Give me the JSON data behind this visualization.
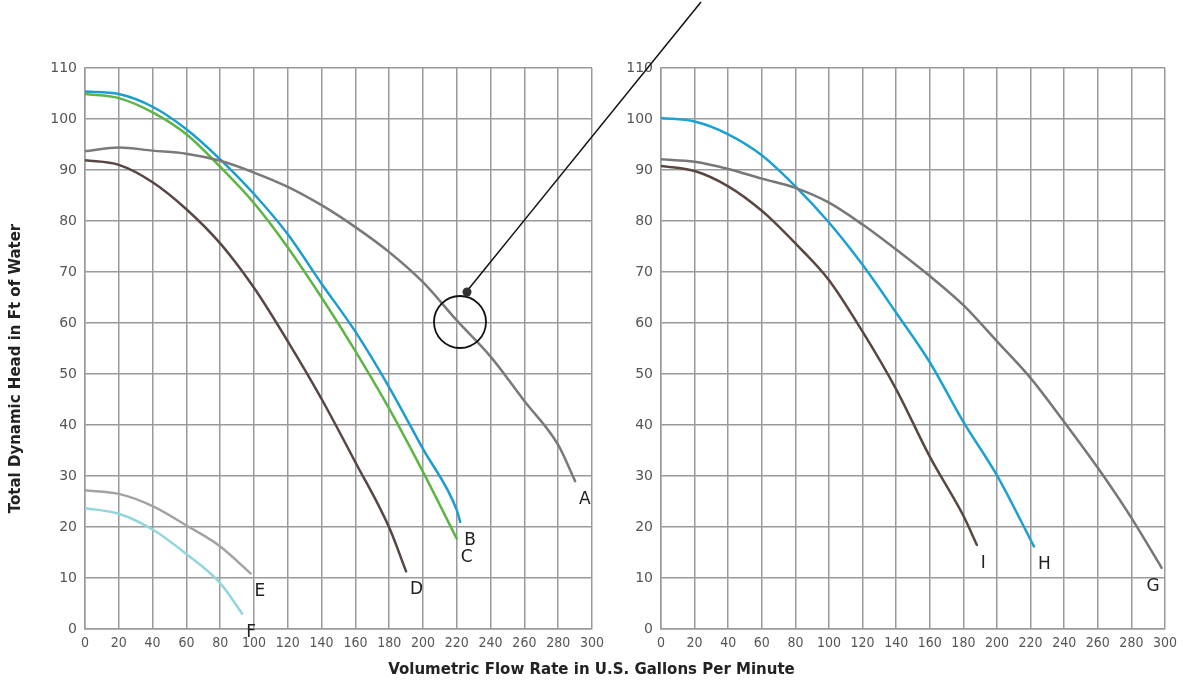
{
  "chart_data": [
    {
      "type": "line",
      "ylabel": "Total Dynamic Head in Ft of Water",
      "xlabel": "Volumetric Flow Rate in U.S. Gallons Per Minute",
      "xlim": [
        0,
        300
      ],
      "xticks": [
        0,
        20,
        40,
        60,
        80,
        100,
        120,
        140,
        160,
        180,
        200,
        220,
        240,
        260,
        280,
        300
      ],
      "ylim": [
        0,
        110
      ],
      "yticks": [
        0,
        10,
        20,
        30,
        40,
        50,
        60,
        70,
        80,
        90,
        100,
        110
      ],
      "grid": true,
      "legend": false,
      "marker": "none",
      "line_style": "solid",
      "series": [
        {
          "name": "A",
          "color": "#7a7a7a",
          "x": [
            0,
            20,
            40,
            60,
            80,
            100,
            120,
            140,
            160,
            180,
            200,
            220,
            240,
            260,
            280,
            290
          ],
          "values": [
            93.7,
            94.4,
            93.8,
            93.2,
            91.8,
            89.5,
            86.7,
            83.1,
            78.8,
            73.9,
            68,
            60.5,
            53.4,
            44.7,
            36.1,
            29
          ]
        },
        {
          "name": "B",
          "color": "#1b9dd0",
          "x": [
            0,
            20,
            40,
            60,
            80,
            100,
            120,
            140,
            160,
            180,
            200,
            220,
            222
          ],
          "values": [
            105.4,
            104.9,
            102.4,
            98,
            92.1,
            85.3,
            77.4,
            67.7,
            58.3,
            47.4,
            35.3,
            23.3,
            21
          ]
        },
        {
          "name": "C",
          "color": "#5cb544",
          "x": [
            0,
            20,
            40,
            60,
            80,
            100,
            120,
            140,
            160,
            180,
            200,
            220
          ],
          "values": [
            104.9,
            104.1,
            101.3,
            97,
            90.6,
            83.5,
            74.8,
            65,
            54.5,
            43.2,
            30.8,
            17.7
          ]
        },
        {
          "name": "D",
          "color": "#574644",
          "x": [
            0,
            20,
            40,
            60,
            80,
            100,
            120,
            140,
            160,
            180,
            190
          ],
          "values": [
            91.9,
            91,
            87.6,
            82.3,
            75.6,
            66.9,
            56.4,
            45.1,
            32.7,
            19.9,
            11.3
          ]
        },
        {
          "name": "E",
          "color": "#a3a3a3",
          "x": [
            0,
            20,
            40,
            60,
            80,
            98
          ],
          "values": [
            27.2,
            26.5,
            24.1,
            20.3,
            16.2,
            10.9
          ]
        },
        {
          "name": "F",
          "color": "#92d6dc",
          "x": [
            0,
            20,
            40,
            60,
            80,
            93
          ],
          "values": [
            23.7,
            22.6,
            19.5,
            14.7,
            9,
            3
          ]
        }
      ]
    },
    {
      "type": "line",
      "xlim": [
        0,
        300
      ],
      "xticks": [
        0,
        20,
        40,
        60,
        80,
        100,
        120,
        140,
        160,
        180,
        200,
        220,
        240,
        260,
        280,
        300
      ],
      "ylim": [
        0,
        110
      ],
      "yticks": [
        0,
        10,
        20,
        30,
        40,
        50,
        60,
        70,
        80,
        90,
        100,
        110
      ],
      "grid": true,
      "legend": false,
      "marker": "none",
      "line_style": "solid",
      "series": [
        {
          "name": "G",
          "color": "#777777",
          "x": [
            0,
            20,
            40,
            60,
            80,
            100,
            120,
            140,
            160,
            180,
            200,
            220,
            240,
            260,
            280,
            298
          ],
          "values": [
            92.1,
            91.6,
            90.2,
            88.3,
            86.5,
            83.6,
            79.3,
            74.4,
            69.2,
            63.5,
            56.4,
            49.2,
            40.6,
            31.6,
            21.8,
            12
          ]
        },
        {
          "name": "H",
          "color": "#1ba2d2",
          "x": [
            0,
            20,
            40,
            60,
            80,
            100,
            120,
            140,
            160,
            180,
            200,
            222
          ],
          "values": [
            100.2,
            99.5,
            97,
            92.9,
            86.8,
            79.7,
            71.4,
            62,
            52.3,
            40.6,
            30.1,
            16.2
          ]
        },
        {
          "name": "I",
          "color": "#5a4742",
          "x": [
            0,
            20,
            40,
            60,
            80,
            100,
            120,
            140,
            160,
            180,
            188
          ],
          "values": [
            90.8,
            89.8,
            86.8,
            82,
            75.6,
            68.4,
            58.3,
            47,
            33.8,
            22.2,
            16.5
          ]
        }
      ]
    }
  ]
}
